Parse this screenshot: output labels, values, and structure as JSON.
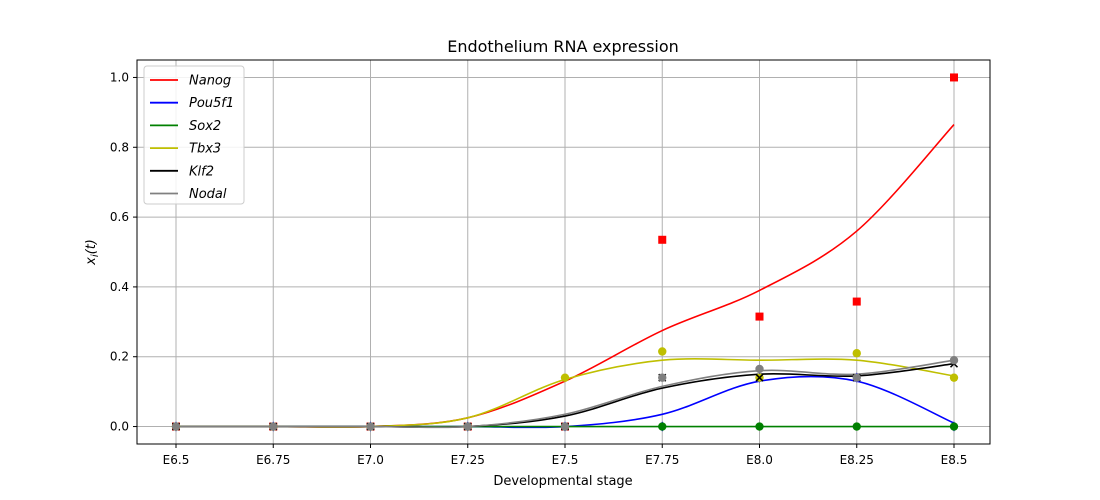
{
  "chart_data": {
    "type": "line",
    "title": "Endothelium RNA expression",
    "xlabel": "Developmental stage",
    "ylabel": "x_i(t)",
    "categories": [
      "E6.5",
      "E6.75",
      "E7.0",
      "E7.25",
      "E7.5",
      "E7.75",
      "E8.0",
      "E8.25",
      "E8.5"
    ],
    "yticks": [
      "0.0",
      "0.2",
      "0.4",
      "0.6",
      "0.8",
      "1.0"
    ],
    "ylim": [
      -0.05,
      1.05
    ],
    "grid": true,
    "legend_position": "top-left",
    "series": [
      {
        "name": "Nanog",
        "color": "#ff0000",
        "marker": "square",
        "points": [
          0,
          0,
          0,
          0,
          0,
          0.535,
          0.315,
          0.358,
          1.0
        ],
        "fit": [
          0.0,
          0.0,
          0.0,
          0.025,
          0.13,
          0.275,
          0.39,
          0.56,
          0.865
        ]
      },
      {
        "name": "Pou5f1",
        "color": "#0000ff",
        "marker": "diamond",
        "points": [
          0,
          0,
          0,
          0,
          0,
          0,
          0.14,
          0.14,
          0.0
        ],
        "fit": [
          0.0,
          0.0,
          0.0,
          0.0,
          0.0,
          0.035,
          0.13,
          0.13,
          0.01
        ]
      },
      {
        "name": "Sox2",
        "color": "#008000",
        "marker": "circle",
        "points": [
          0,
          0,
          0,
          0,
          0,
          0,
          0,
          0,
          0
        ],
        "fit": [
          0,
          0,
          0,
          0,
          0,
          0,
          0,
          0,
          0
        ]
      },
      {
        "name": "Tbx3",
        "color": "#bfbf00",
        "marker": "circle",
        "points": [
          0,
          0,
          0,
          0,
          0.14,
          0.215,
          0.14,
          0.21,
          0.14
        ],
        "fit": [
          0.0,
          0.0,
          0.0,
          0.025,
          0.135,
          0.19,
          0.19,
          0.19,
          0.145
        ]
      },
      {
        "name": "Klf2",
        "color": "#000000",
        "marker": "x",
        "points": [
          0,
          0,
          0,
          0,
          0,
          0.14,
          0.14,
          0.14,
          0.18
        ],
        "fit": [
          0.0,
          0.0,
          0.0,
          0.0,
          0.03,
          0.11,
          0.15,
          0.145,
          0.18
        ]
      },
      {
        "name": "Nodal",
        "color": "#808080",
        "marker": "circle",
        "points": [
          0,
          0,
          0,
          0,
          0,
          0.14,
          0.165,
          0.14,
          0.19
        ],
        "fit": [
          0.0,
          0.0,
          0.0,
          0.0,
          0.035,
          0.115,
          0.16,
          0.15,
          0.19
        ]
      }
    ]
  }
}
